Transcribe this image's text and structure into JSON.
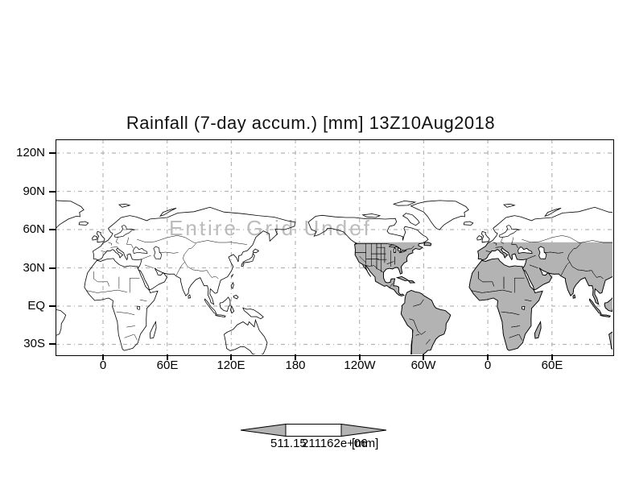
{
  "title": "Rainfall (7-day accum.) [mm] 13Z10Aug2018",
  "overlay_message": "Entire Grid Undef",
  "axes": {
    "y_tick_labels": [
      "120N",
      "90N",
      "60N",
      "30N",
      "EQ",
      "30S"
    ],
    "x_tick_labels": [
      "0",
      "60E",
      "120E",
      "180",
      "120W",
      "60W",
      "0",
      "60E"
    ]
  },
  "colorbar": {
    "low_label": "511.15",
    "high_label": "211162e+06",
    "units_label": "[mm]"
  },
  "colors": {
    "land_fill": "#b3b3b3",
    "grid": "#b4b4b4",
    "overlay_text": "#bcbcbc",
    "arrow_fill": "#b3b3b3",
    "frame": "#000000",
    "background": "#ffffff"
  },
  "chart_data": {
    "type": "heatmap",
    "title": "Rainfall (7-day accum.) [mm] 13Z10Aug2018",
    "x_ticks": [
      "0",
      "60E",
      "120E",
      "180",
      "120W",
      "60W",
      "0",
      "60E"
    ],
    "x_tick_lon_deg": [
      0,
      60,
      120,
      180,
      240,
      300,
      360,
      420
    ],
    "y_ticks": [
      "120N",
      "90N",
      "60N",
      "30N",
      "EQ",
      "30S"
    ],
    "y_tick_lat_deg": [
      120,
      90,
      60,
      30,
      0,
      -30
    ],
    "grid": true,
    "values": null,
    "status_annotation": "Entire Grid Undef",
    "colorbar_labels": [
      "511.15",
      "211162e+06"
    ],
    "units": "[mm]",
    "legend_position": "bottom-center",
    "map_overlay": {
      "description": "world coastlines repeated over lon 0-420E; land shaded gray for lon>234E and lat<50N",
      "shade_color": "#b3b3b3"
    }
  }
}
